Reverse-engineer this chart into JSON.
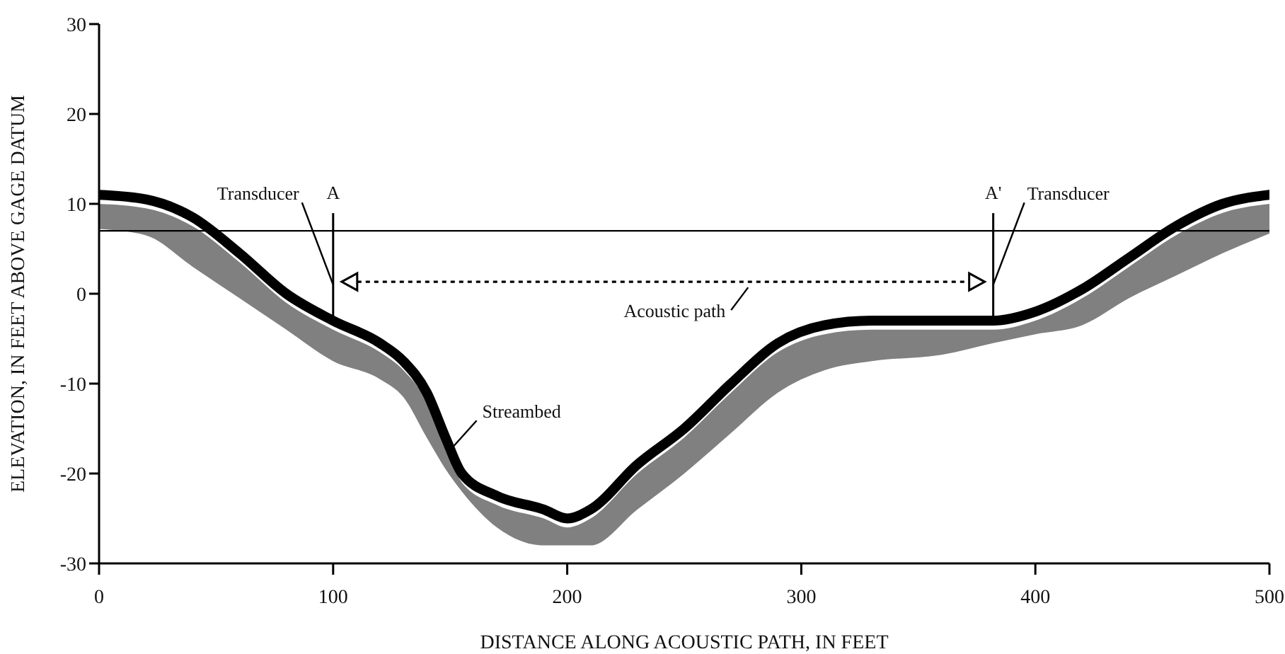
{
  "chart_data": {
    "type": "line",
    "xlabel": "DISTANCE ALONG ACOUSTIC PATH, IN FEET",
    "ylabel": "ELEVATION, IN FEET ABOVE GAGE DATUM",
    "xlim": [
      0,
      500
    ],
    "xticks": [
      0,
      100,
      200,
      300,
      400,
      500
    ],
    "ylim": [
      -30,
      30
    ],
    "yticks": [
      -30,
      -20,
      -10,
      0,
      10,
      20,
      30
    ],
    "grid": false,
    "ref_lines": [
      {
        "axis": "y",
        "value": 7
      },
      {
        "axis": "x",
        "value": 100,
        "label": "A"
      },
      {
        "axis": "x",
        "value": 382,
        "label": "A'"
      }
    ],
    "annotations": [
      {
        "text": "Transducer",
        "x": 100,
        "y": 1
      },
      {
        "text": "Transducer",
        "x": 382,
        "y": 1
      },
      {
        "text": "Streambed",
        "x": 148,
        "y": -16
      },
      "Acoustic path"
    ],
    "series": [
      {
        "color": "#000000",
        "x": [
          0,
          20,
          40,
          60,
          80,
          100,
          120,
          130,
          140,
          148,
          155,
          170,
          190,
          200,
          210,
          230,
          250,
          270,
          290,
          310,
          330,
          360,
          382,
          400,
          420,
          440,
          460,
          480,
          500
        ],
        "values": [
          11,
          10.5,
          8.5,
          4.5,
          0,
          -3,
          -5.5,
          -7.5,
          -11,
          -16,
          -20,
          -22.5,
          -24,
          -25,
          -24,
          -19,
          -15,
          -10,
          -5.5,
          -3.5,
          -3,
          -3,
          -3,
          -2,
          0.5,
          4,
          7.5,
          10,
          11
        ],
        "lower": [
          7.2,
          6.5,
          3,
          -0.5,
          -4,
          -7.5,
          -9.5,
          -11.5,
          -16,
          -19.5,
          -22,
          -26,
          -28,
          -28,
          -28,
          -24,
          -20,
          -15.5,
          -11,
          -8.5,
          -7.5,
          -6.8,
          -5.5,
          -4.5,
          -3.5,
          -0.5,
          2,
          4.5,
          6.7
        ],
        "upper": [
          10,
          9.5,
          7.5,
          3.5,
          -1,
          -4,
          -6.5,
          -8.5,
          -12,
          -17,
          -21,
          -23.5,
          -25,
          -26,
          -25,
          -20,
          -16,
          -11,
          -6.5,
          -4.5,
          -4,
          -4,
          -4,
          -3,
          -0.5,
          3,
          6.5,
          9,
          10
        ]
      }
    ]
  }
}
